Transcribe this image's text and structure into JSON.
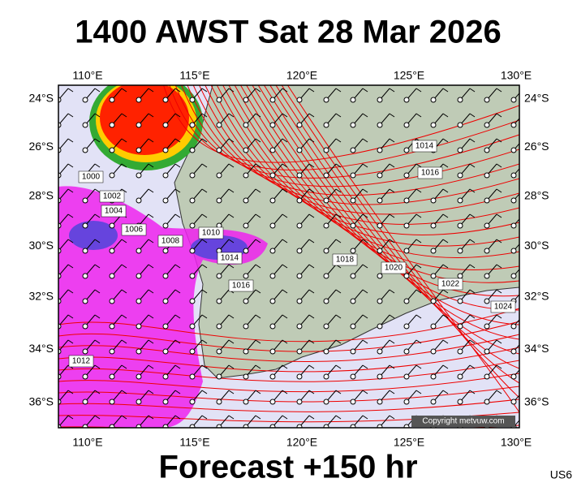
{
  "header": {
    "title": "1400 AWST Sat 28 Mar 2026"
  },
  "footer": {
    "title": "Forecast +150 hr",
    "model": "US6"
  },
  "map": {
    "copyright": "Copyright metvuw.com",
    "lon_ticks": [
      {
        "value": 110,
        "label": "110°E"
      },
      {
        "value": 115,
        "label": "115°E"
      },
      {
        "value": 120,
        "label": "120°E"
      },
      {
        "value": 125,
        "label": "125°E"
      },
      {
        "value": 130,
        "label": "130°E"
      }
    ],
    "lat_ticks": [
      {
        "value": 24,
        "label": "24°S"
      },
      {
        "value": 26,
        "label": "26°S"
      },
      {
        "value": 28,
        "label": "28°S"
      },
      {
        "value": 30,
        "label": "30°S"
      },
      {
        "value": 32,
        "label": "32°S"
      },
      {
        "value": 34,
        "label": "34°S"
      },
      {
        "value": 36,
        "label": "36°S"
      }
    ],
    "isobar_labels": [
      "1000",
      "1002",
      "1004",
      "1006",
      "1008",
      "1010",
      "1012",
      "1014",
      "1016",
      "1018",
      "1020",
      "1022",
      "1024",
      "1014",
      "1016"
    ]
  }
}
